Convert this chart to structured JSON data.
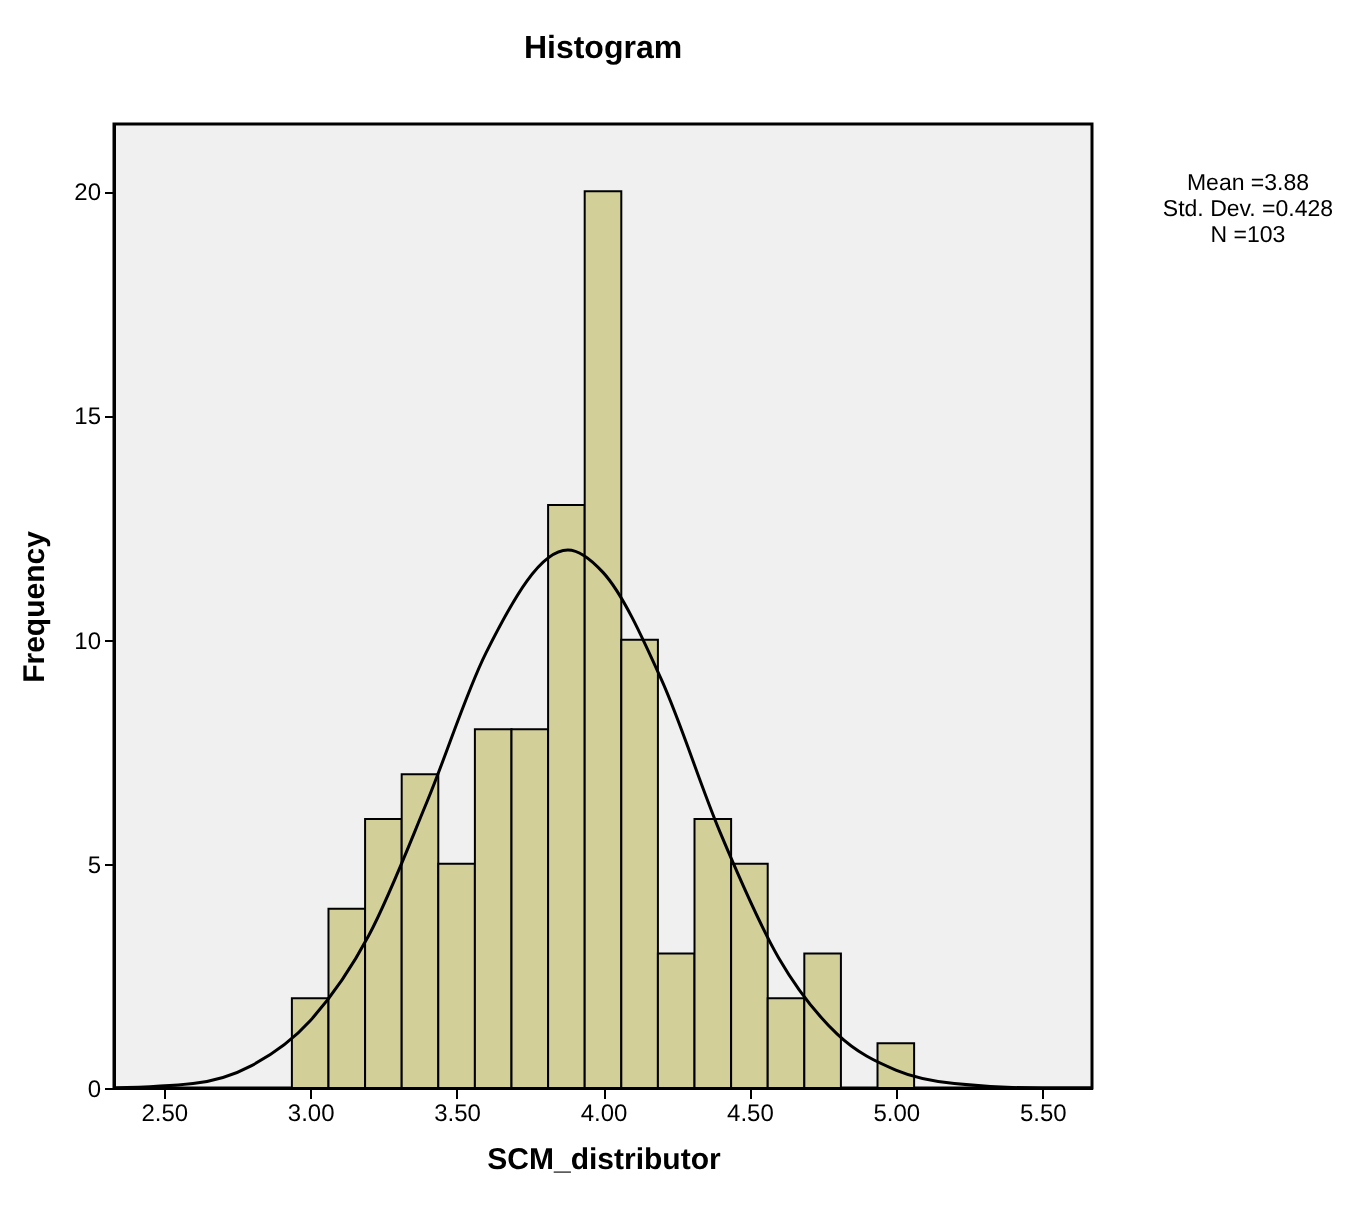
{
  "chart_data": {
    "type": "histogram",
    "title": "Histogram",
    "xlabel": "SCM_distributor",
    "ylabel": "Frequency",
    "bins": [
      2.9375,
      3.0625,
      3.1875,
      3.3125,
      3.4375,
      3.5625,
      3.6875,
      3.8125,
      3.9375,
      4.0625,
      4.1875,
      4.3125,
      4.4375,
      4.5625,
      4.6875,
      4.8125,
      4.9375,
      5.0625
    ],
    "series": [
      {
        "color": "#d3cf98",
        "values": [
          2,
          4,
          6,
          7,
          5,
          8,
          8,
          13,
          20,
          10,
          3,
          6,
          5,
          2,
          3,
          0,
          1
        ]
      },
      {
        "type": "line",
        "color": "#000000",
        "x": [
          2.33,
          2.6,
          2.8,
          3.0,
          3.2,
          3.4,
          3.6,
          3.88,
          4.0,
          4.2,
          4.4,
          4.6,
          4.8,
          5.0,
          5.2,
          5.5,
          5.67
        ],
        "values": [
          0,
          0.1,
          0.5,
          1.5,
          3.4,
          6.4,
          9.7,
          12,
          11.5,
          9.1,
          5.7,
          2.9,
          1.2,
          0.4,
          0.1,
          0,
          0
        ]
      }
    ],
    "xlim": [
      2.33,
      5.67
    ],
    "ylim": [
      0,
      21.5
    ],
    "xticks": [
      {
        "value": 2.5,
        "label": "2.50"
      },
      {
        "value": 3,
        "label": "3.00"
      },
      {
        "value": 3.5,
        "label": "3.50"
      },
      {
        "value": 4,
        "label": "4.00"
      },
      {
        "value": 4.5,
        "label": "4.50"
      },
      {
        "value": 5,
        "label": "5.00"
      },
      {
        "value": 5.5,
        "label": "5.50"
      }
    ],
    "yticks": [
      0,
      5,
      10,
      15,
      20
    ],
    "annotations": [
      "Mean =3.88",
      "Std. Dev. =0.428",
      "N =103"
    ]
  }
}
